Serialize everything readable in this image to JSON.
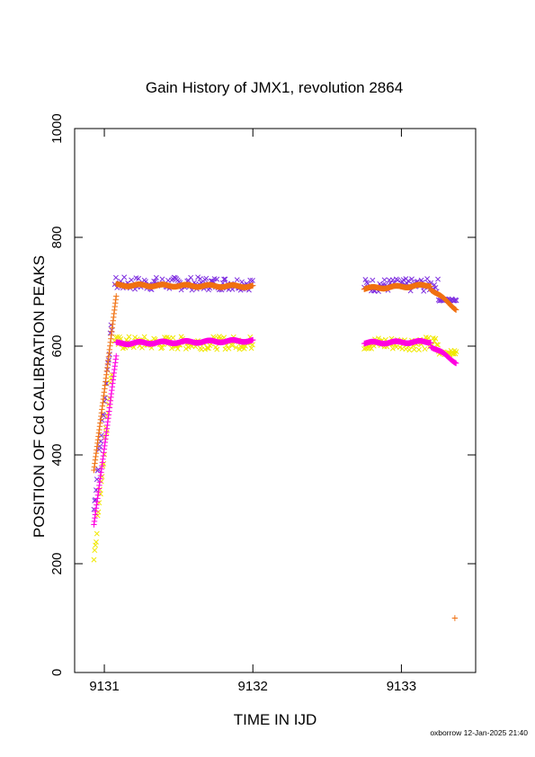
{
  "chart_data": {
    "type": "scatter",
    "title": "Gain History of JMX1, revolution 2864",
    "xlabel": "TIME IN IJD",
    "ylabel": "POSITION OF Cd CALIBRATION PEAKS",
    "xlim": [
      9130.8,
      9133.5
    ],
    "ylim": [
      0,
      1000
    ],
    "xticks": [
      9131,
      9132,
      9133
    ],
    "yticks": [
      0,
      200,
      400,
      600,
      800,
      1000
    ],
    "grid": false,
    "legend": "none",
    "series": [
      {
        "marker": "x",
        "color": "#7f2fe0",
        "segments": [
          {
            "x0": 9130.93,
            "x1": 9131.05,
            "y0": 300,
            "y1": 640,
            "step": 0.005,
            "amp": 14
          },
          {
            "x0": 9131.07,
            "x1": 9132.0,
            "y0": 715,
            "y1": 715,
            "step": 0.008,
            "amp": 12
          },
          {
            "x0": 9132.75,
            "x1": 9133.25,
            "y0": 712,
            "y1": 712,
            "step": 0.008,
            "amp": 12
          },
          {
            "x0": 9133.25,
            "x1": 9133.37,
            "y0": 685,
            "y1": 685,
            "step": 0.006,
            "amp": 2
          }
        ]
      },
      {
        "marker": "x",
        "color": "#f0e800",
        "segments": [
          {
            "x0": 9130.93,
            "x1": 9131.05,
            "y0": 210,
            "y1": 555,
            "step": 0.005,
            "amp": 14
          },
          {
            "x0": 9131.07,
            "x1": 9132.0,
            "y0": 606,
            "y1": 606,
            "step": 0.008,
            "amp": 12
          },
          {
            "x0": 9132.75,
            "x1": 9133.25,
            "y0": 605,
            "y1": 605,
            "step": 0.008,
            "amp": 12
          },
          {
            "x0": 9133.25,
            "x1": 9133.37,
            "y0": 588,
            "y1": 588,
            "step": 0.006,
            "amp": 4
          }
        ]
      },
      {
        "marker": "+",
        "color": "#f07010",
        "segments": [
          {
            "x0": 9130.93,
            "x1": 9131.08,
            "y0": 370,
            "y1": 690,
            "step": 0.003,
            "amp": 0
          },
          {
            "x0": 9131.08,
            "x1": 9132.0,
            "y0": 712,
            "y1": 710,
            "step": 0.004,
            "amp": 0
          },
          {
            "x0": 9132.75,
            "x1": 9133.2,
            "y0": 706,
            "y1": 712,
            "step": 0.004,
            "amp": 0
          },
          {
            "x0": 9133.2,
            "x1": 9133.37,
            "y0": 705,
            "y1": 668,
            "step": 0.004,
            "amp": 0
          }
        ],
        "points": [
          [
            9133.36,
            100
          ]
        ]
      },
      {
        "marker": "+",
        "color": "#ff00e0",
        "segments": [
          {
            "x0": 9130.93,
            "x1": 9131.08,
            "y0": 270,
            "y1": 580,
            "step": 0.003,
            "amp": 0
          },
          {
            "x0": 9131.08,
            "x1": 9132.0,
            "y0": 605,
            "y1": 610,
            "step": 0.004,
            "amp": 0
          },
          {
            "x0": 9132.75,
            "x1": 9133.2,
            "y0": 606,
            "y1": 608,
            "step": 0.004,
            "amp": 0
          },
          {
            "x0": 9133.2,
            "x1": 9133.37,
            "y0": 600,
            "y1": 570,
            "step": 0.004,
            "amp": 0
          }
        ]
      }
    ]
  },
  "footer": {
    "stamp": "oxborrow 12-Jan-2025 21:40"
  }
}
